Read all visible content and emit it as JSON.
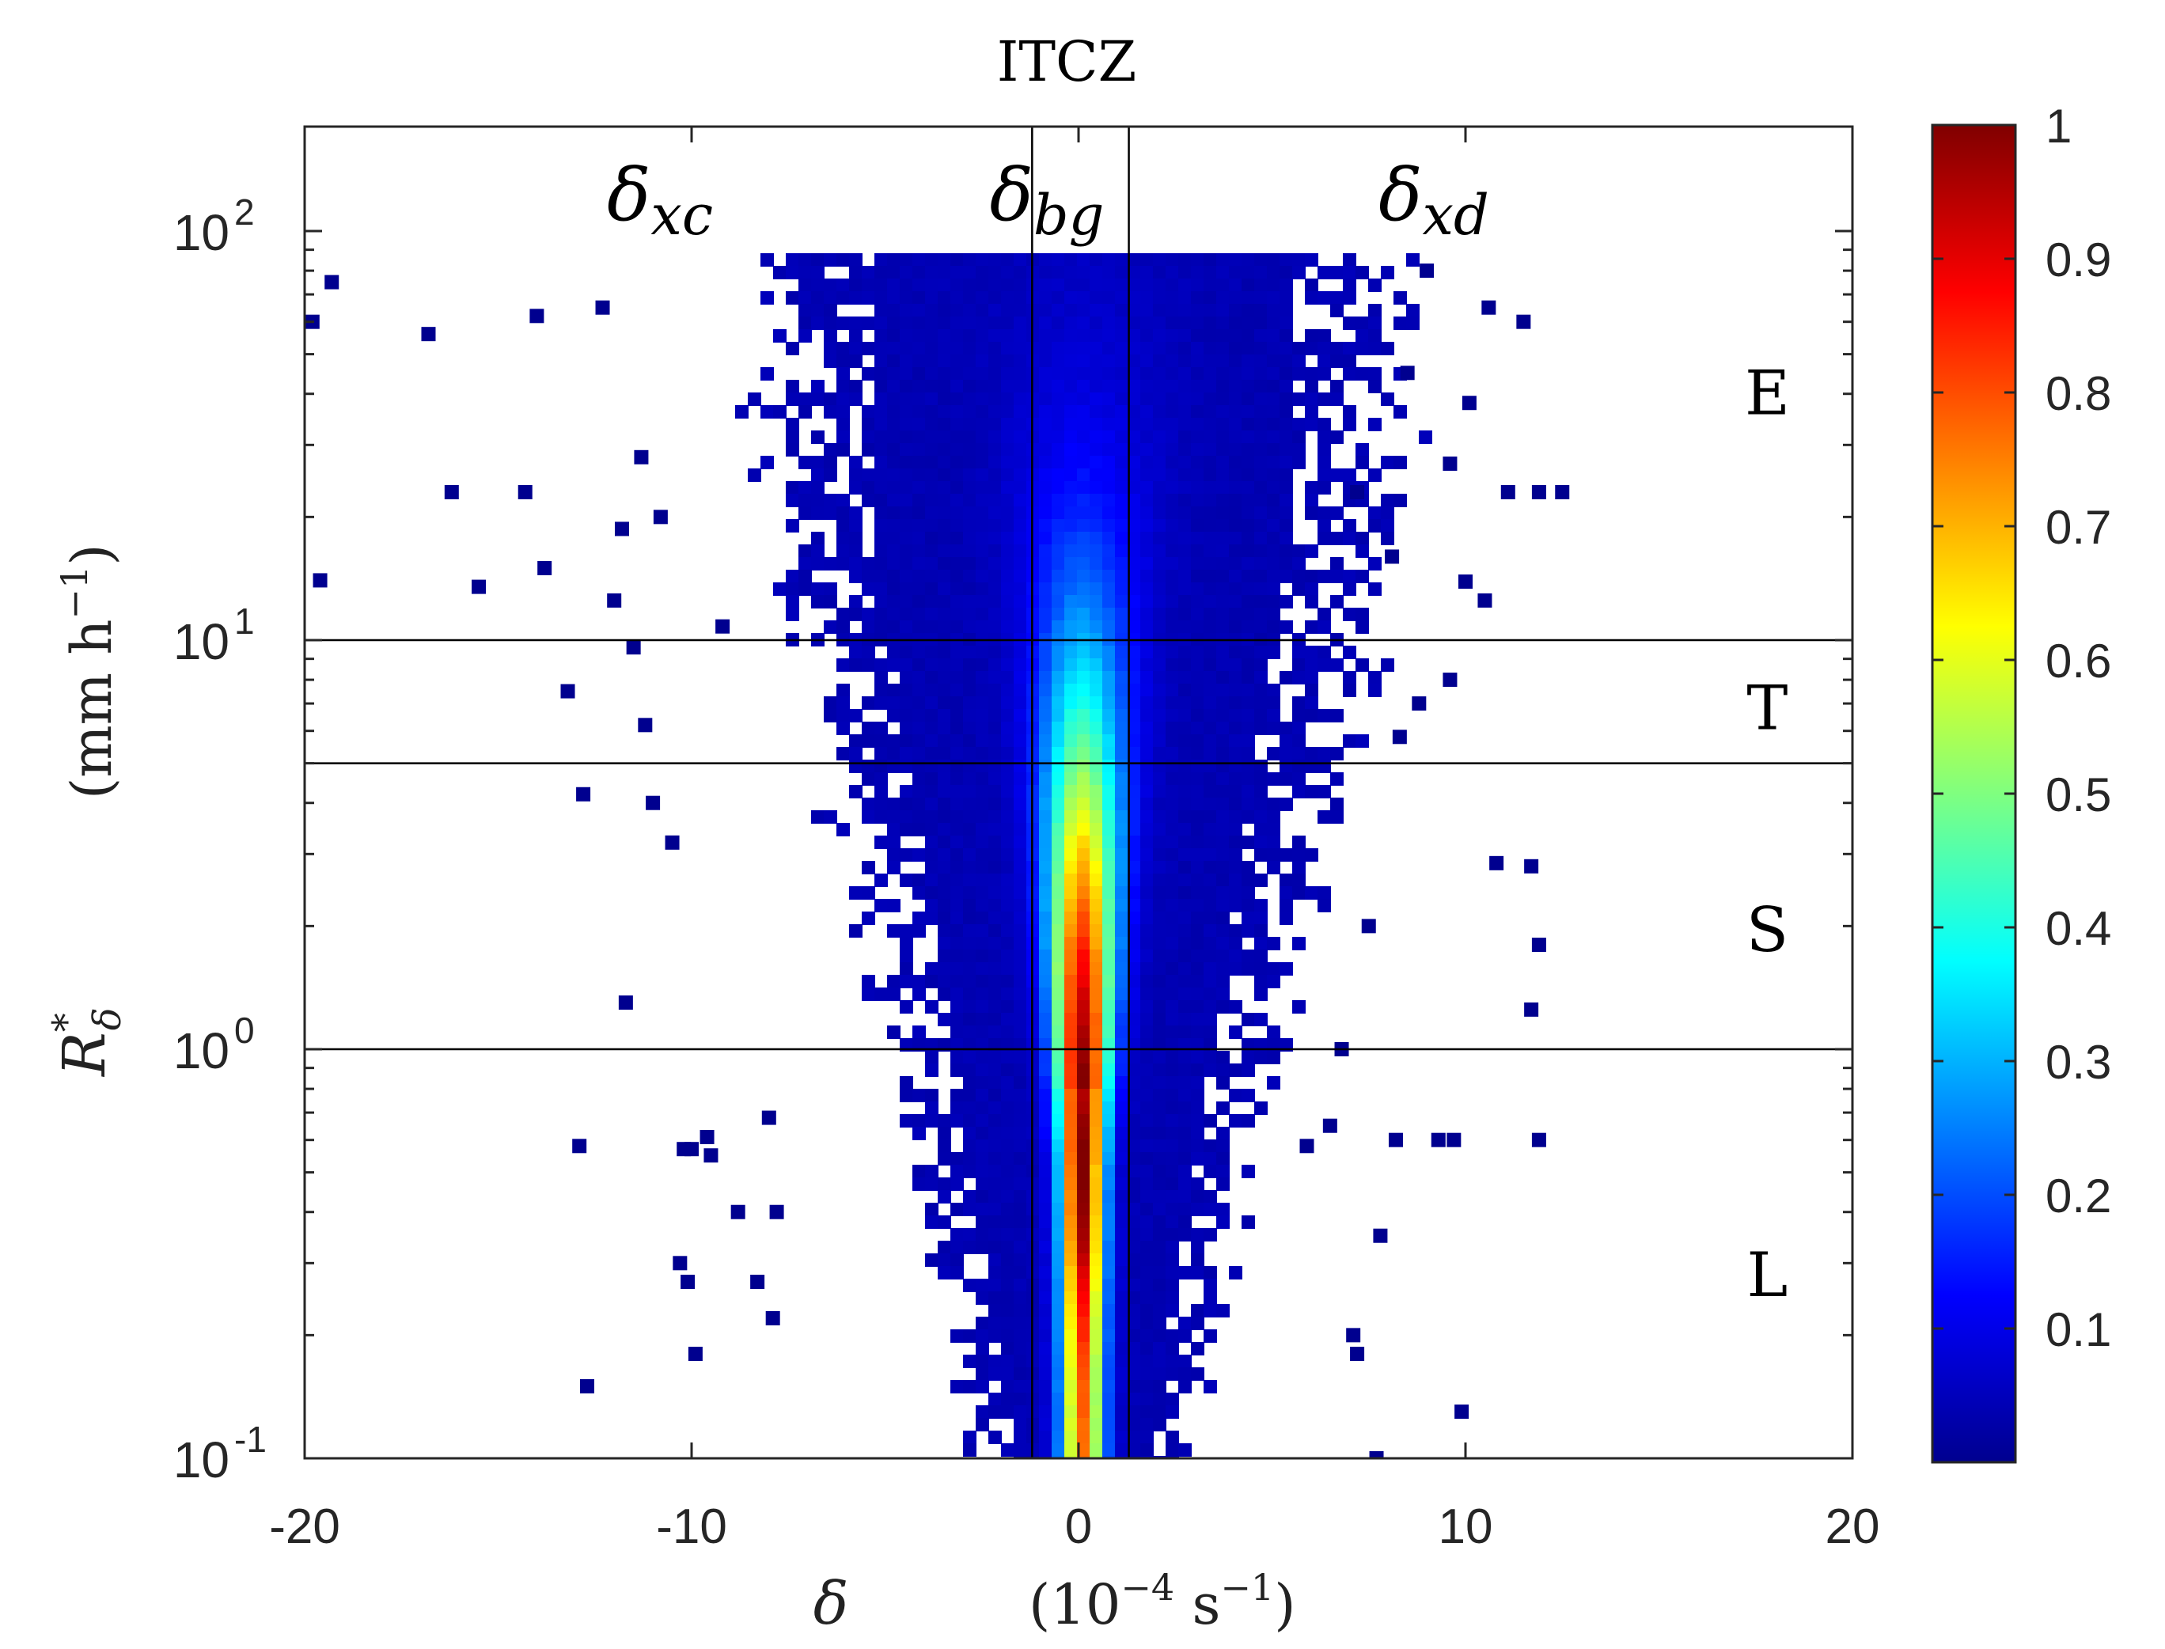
{
  "chart_data": {
    "type": "scatter",
    "subtype": "density-colored scatter (2D histogram), log y-axis",
    "title": "ITCZ",
    "xlabel": {
      "symbol": "δ",
      "units_base": "(10",
      "units_exp": "−4",
      "units_mid": " s",
      "units_exp2": "−1",
      "units_close": ")"
    },
    "ylabel": {
      "symbol": "R",
      "sup": "*",
      "sub": "δ",
      "units_open": "(mm h",
      "units_exp": "−1",
      "units_close": ")"
    },
    "xlim": [
      -20,
      20
    ],
    "ylim": [
      0.1,
      180
    ],
    "yscale": "log",
    "xticks": [
      -20,
      -10,
      0,
      10,
      20
    ],
    "xtick_labels": [
      "-20",
      "-10",
      "0",
      "10",
      "20"
    ],
    "yticks": [
      {
        "value": 100,
        "base": "10",
        "exp": "2"
      },
      {
        "value": 10,
        "base": "10",
        "exp": "1"
      },
      {
        "value": 1,
        "base": "10",
        "exp": "0"
      },
      {
        "value": 0.1,
        "base": "10",
        "exp": "-1"
      }
    ],
    "horizontal_lines": [
      10,
      5,
      1
    ],
    "vertical_lines": [
      -1.2,
      1.3
    ],
    "region_labels": [
      {
        "text": "E",
        "x": 17.8,
        "y": 40
      },
      {
        "text": "T",
        "x": 17.8,
        "y": 6.8
      },
      {
        "text": "S",
        "x": 17.8,
        "y": 1.95
      },
      {
        "text": "L",
        "x": 17.8,
        "y": 0.28
      }
    ],
    "column_labels": [
      {
        "symbol": "δ",
        "sub": "xc",
        "x": -10
      },
      {
        "symbol": "δ",
        "sub": "bg",
        "x": 0
      },
      {
        "symbol": "δ",
        "sub": "xd",
        "x": 10
      }
    ],
    "density_model": {
      "description": "Normalized point density; peak at δ≈0 near R≈0.5–1 mm/h, spread widening with R",
      "center_x": 0.1,
      "peak_value": 1.0
    },
    "colorbar": {
      "colormap": "jet",
      "range": [
        0,
        1
      ],
      "ticks": [
        0.1,
        0.2,
        0.3,
        0.4,
        0.5,
        0.6,
        0.7,
        0.8,
        0.9,
        1
      ],
      "tick_labels": [
        "0.1",
        "0.2",
        "0.3",
        "0.4",
        "0.5",
        "0.6",
        "0.7",
        "0.8",
        "0.9",
        "1"
      ]
    },
    "outliers": [
      [
        -19.8,
        60
      ],
      [
        -19.3,
        75
      ],
      [
        -16.8,
        56
      ],
      [
        -16.2,
        23
      ],
      [
        -15.5,
        13.5
      ],
      [
        -14.3,
        23
      ],
      [
        -13.8,
        15
      ],
      [
        -13.2,
        7.5
      ],
      [
        -12.8,
        4.2
      ],
      [
        -12.7,
        0.15
      ],
      [
        -12.9,
        0.58
      ],
      [
        -11.7,
        1.3
      ],
      [
        -11.2,
        6.2
      ],
      [
        -10.2,
        0.57
      ],
      [
        -10.0,
        0.57
      ],
      [
        -10.3,
        0.3
      ],
      [
        -9.9,
        0.18
      ],
      [
        -10.1,
        0.27
      ],
      [
        -9.5,
        0.55
      ],
      [
        -11.5,
        9.6
      ],
      [
        -11.0,
        4.0
      ],
      [
        -10.5,
        3.2
      ],
      [
        -9.2,
        10.8
      ],
      [
        -8.8,
        0.4
      ],
      [
        -8.3,
        0.27
      ],
      [
        -7.8,
        0.4
      ],
      [
        -12.0,
        12.5
      ],
      [
        -11.8,
        18.7
      ],
      [
        -10.8,
        20
      ],
      [
        -19.6,
        14
      ],
      [
        -14.0,
        62
      ],
      [
        -11.3,
        28
      ],
      [
        -12.3,
        65
      ],
      [
        -9.6,
        0.61
      ],
      [
        -8.0,
        0.68
      ],
      [
        -7.9,
        0.22
      ],
      [
        10.8,
        2.85
      ],
      [
        11.7,
        2.8
      ],
      [
        11.9,
        1.8
      ],
      [
        11.7,
        1.25
      ],
      [
        11.9,
        0.6
      ],
      [
        9.7,
        0.6
      ],
      [
        9.3,
        0.6
      ],
      [
        8.2,
        0.6
      ],
      [
        9.9,
        0.13
      ],
      [
        12.5,
        23
      ],
      [
        11.9,
        23
      ],
      [
        11.1,
        23
      ],
      [
        11.5,
        60
      ],
      [
        10.6,
        65
      ],
      [
        10.1,
        38
      ],
      [
        10.5,
        12.5
      ],
      [
        10.0,
        13.9
      ],
      [
        9.6,
        8.0
      ],
      [
        9.6,
        27
      ],
      [
        8.8,
        7.0
      ],
      [
        8.3,
        5.8
      ],
      [
        7.5,
        2.0
      ],
      [
        7.8,
        0.35
      ],
      [
        7.7,
        0.1
      ],
      [
        7.2,
        0.18
      ],
      [
        8.5,
        45
      ],
      [
        9.0,
        80
      ],
      [
        7.2,
        23
      ],
      [
        8.1,
        16
      ],
      [
        6.8,
        1.0
      ],
      [
        7.1,
        0.2
      ],
      [
        5.9,
        0.58
      ],
      [
        6.5,
        0.65
      ]
    ]
  }
}
